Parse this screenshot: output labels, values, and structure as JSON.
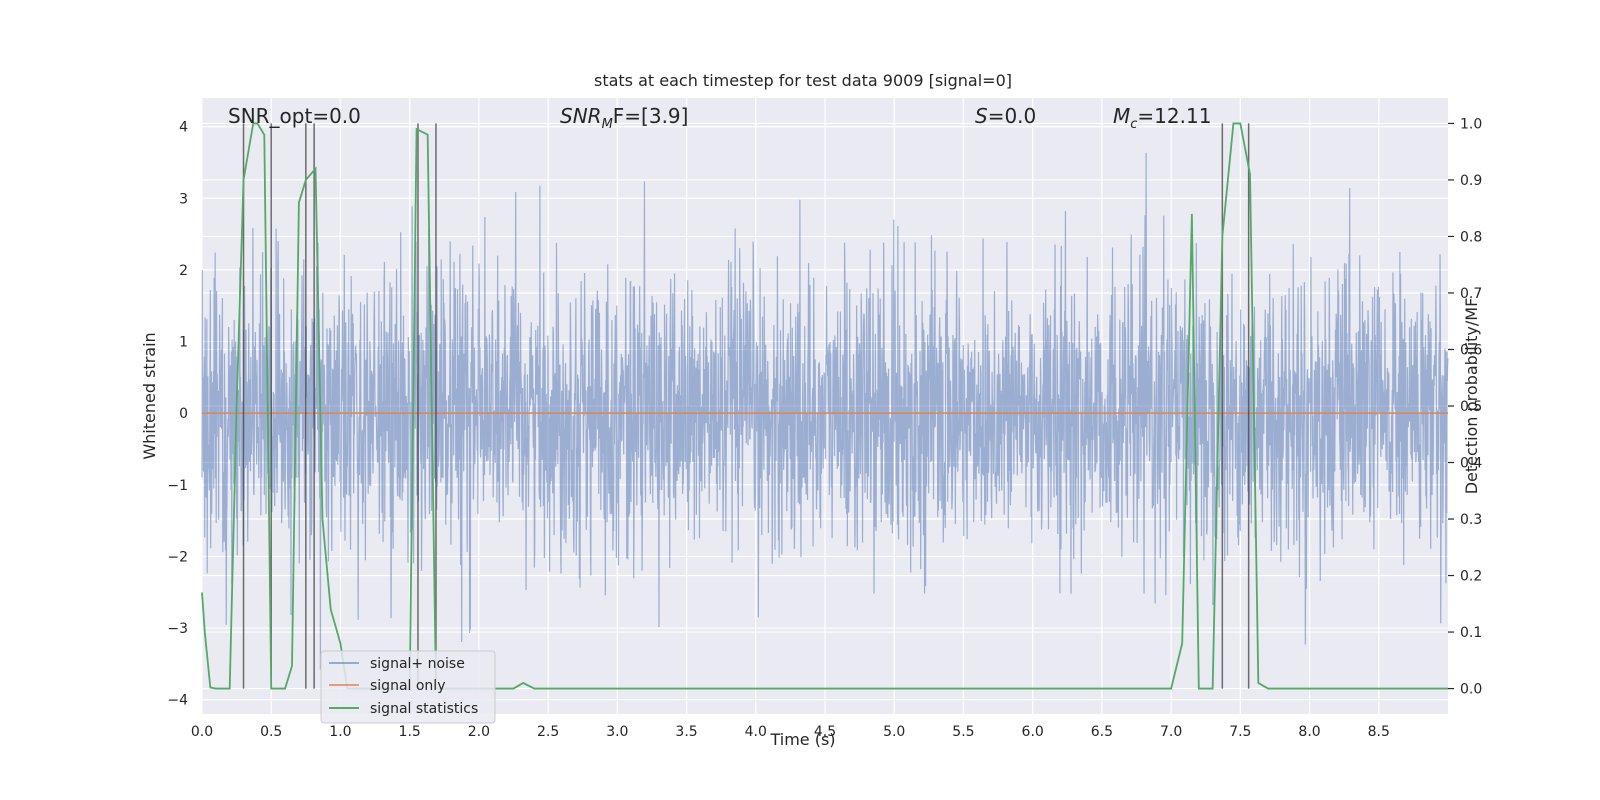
{
  "chart_data": {
    "type": "line",
    "title": "stats at each timestep for test data 9009 [signal=0]",
    "xlabel": "Time (s)",
    "ylabel": "Whitened strain",
    "y2label": "Detection probability/MF",
    "xlim": [
      0.0,
      9.0
    ],
    "ylim": [
      -4.2,
      4.4
    ],
    "y2lim": [
      -0.045,
      1.045
    ],
    "xticks": [
      0.0,
      0.5,
      1.0,
      1.5,
      2.0,
      2.5,
      3.0,
      3.5,
      4.0,
      4.5,
      5.0,
      5.5,
      6.0,
      6.5,
      7.0,
      7.5,
      8.0,
      8.5
    ],
    "xtick_labels": [
      "0.0",
      "0.5",
      "1.0",
      "1.5",
      "2.0",
      "2.5",
      "3.0",
      "3.5",
      "4.0",
      "4.5",
      "5.0",
      "5.5",
      "6.0",
      "6.5",
      "7.0",
      "7.5",
      "8.0",
      "8.5"
    ],
    "yticks": [
      -4,
      -3,
      -2,
      -1,
      0,
      1,
      2,
      3,
      4
    ],
    "ytick_labels": [
      "−4",
      "−3",
      "−2",
      "−1",
      "0",
      "1",
      "2",
      "3",
      "4"
    ],
    "y2ticks": [
      0.0,
      0.1,
      0.2,
      0.3,
      0.4,
      0.5,
      0.6,
      0.7,
      0.8,
      0.9,
      1.0
    ],
    "y2tick_labels": [
      "0.0",
      "0.1",
      "0.2",
      "0.3",
      "0.4",
      "0.5",
      "0.6",
      "0.7",
      "0.8",
      "0.9",
      "1.0"
    ],
    "grid": true,
    "legend_position": "lower-left",
    "annotations": {
      "snr_opt": "SNR_opt=0.0",
      "snr_mf_main": "SNR",
      "snr_mf_sub": "M",
      "snr_mf_tail": "F=[3.9]",
      "s_main": "S",
      "s_tail": "=0.0",
      "mc_main": "M",
      "mc_sub": "c",
      "mc_tail": "=12.11"
    },
    "series": [
      {
        "name": "signal+ noise",
        "axis": "left",
        "color": "#4c72b0",
        "description_envelope": {
          "typical_range": [
            -1.7,
            1.7
          ],
          "peak_max": 4.0,
          "peak_min": -3.7
        }
      },
      {
        "name": "signal only",
        "axis": "left",
        "color": "#dd8452",
        "x": [
          0.0,
          9.0
        ],
        "y": [
          0.0,
          0.0
        ]
      },
      {
        "name": "signal statistics",
        "axis": "right",
        "color": "#55a868",
        "x": [
          0.0,
          0.02,
          0.06,
          0.1,
          0.16,
          0.2,
          0.25,
          0.3,
          0.37,
          0.4,
          0.45,
          0.5,
          0.55,
          0.6,
          0.65,
          0.7,
          0.75,
          0.82,
          0.87,
          0.93,
          1.0,
          1.05,
          1.1,
          1.15,
          1.3,
          1.45,
          1.5,
          1.55,
          1.63,
          1.69,
          1.75,
          1.8,
          1.85,
          2.0,
          2.1,
          2.17,
          2.25,
          2.32,
          2.4,
          2.5,
          3.0,
          4.0,
          5.0,
          5.2,
          6.0,
          7.0,
          7.08,
          7.15,
          7.2,
          7.25,
          7.3,
          7.37,
          7.45,
          7.5,
          7.57,
          7.63,
          7.7,
          8.0,
          8.5,
          9.0
        ],
        "y": [
          0.17,
          0.1,
          0.002,
          0.0,
          0.0,
          0.0,
          0.5,
          0.9,
          1.0,
          1.0,
          0.98,
          0.0,
          0.0,
          0.0,
          0.04,
          0.86,
          0.9,
          0.92,
          0.3,
          0.14,
          0.08,
          0.0,
          0.0,
          0.0,
          0.0,
          0.0,
          0.0,
          0.99,
          0.98,
          0.0,
          0.0,
          0.0,
          0.0,
          0.0,
          0.0,
          0.0,
          0.0,
          0.01,
          0.0,
          0.0,
          0.0,
          0.0,
          0.0,
          0.0,
          0.0,
          0.0,
          0.08,
          0.84,
          0.0,
          0.0,
          0.0,
          0.8,
          1.0,
          1.0,
          0.91,
          0.01,
          0.0,
          0.0,
          0.0,
          0.0
        ]
      }
    ],
    "vertical_lines_x": [
      0.3,
      0.5,
      0.75,
      0.81,
      1.56,
      1.69,
      7.37,
      7.56
    ]
  }
}
